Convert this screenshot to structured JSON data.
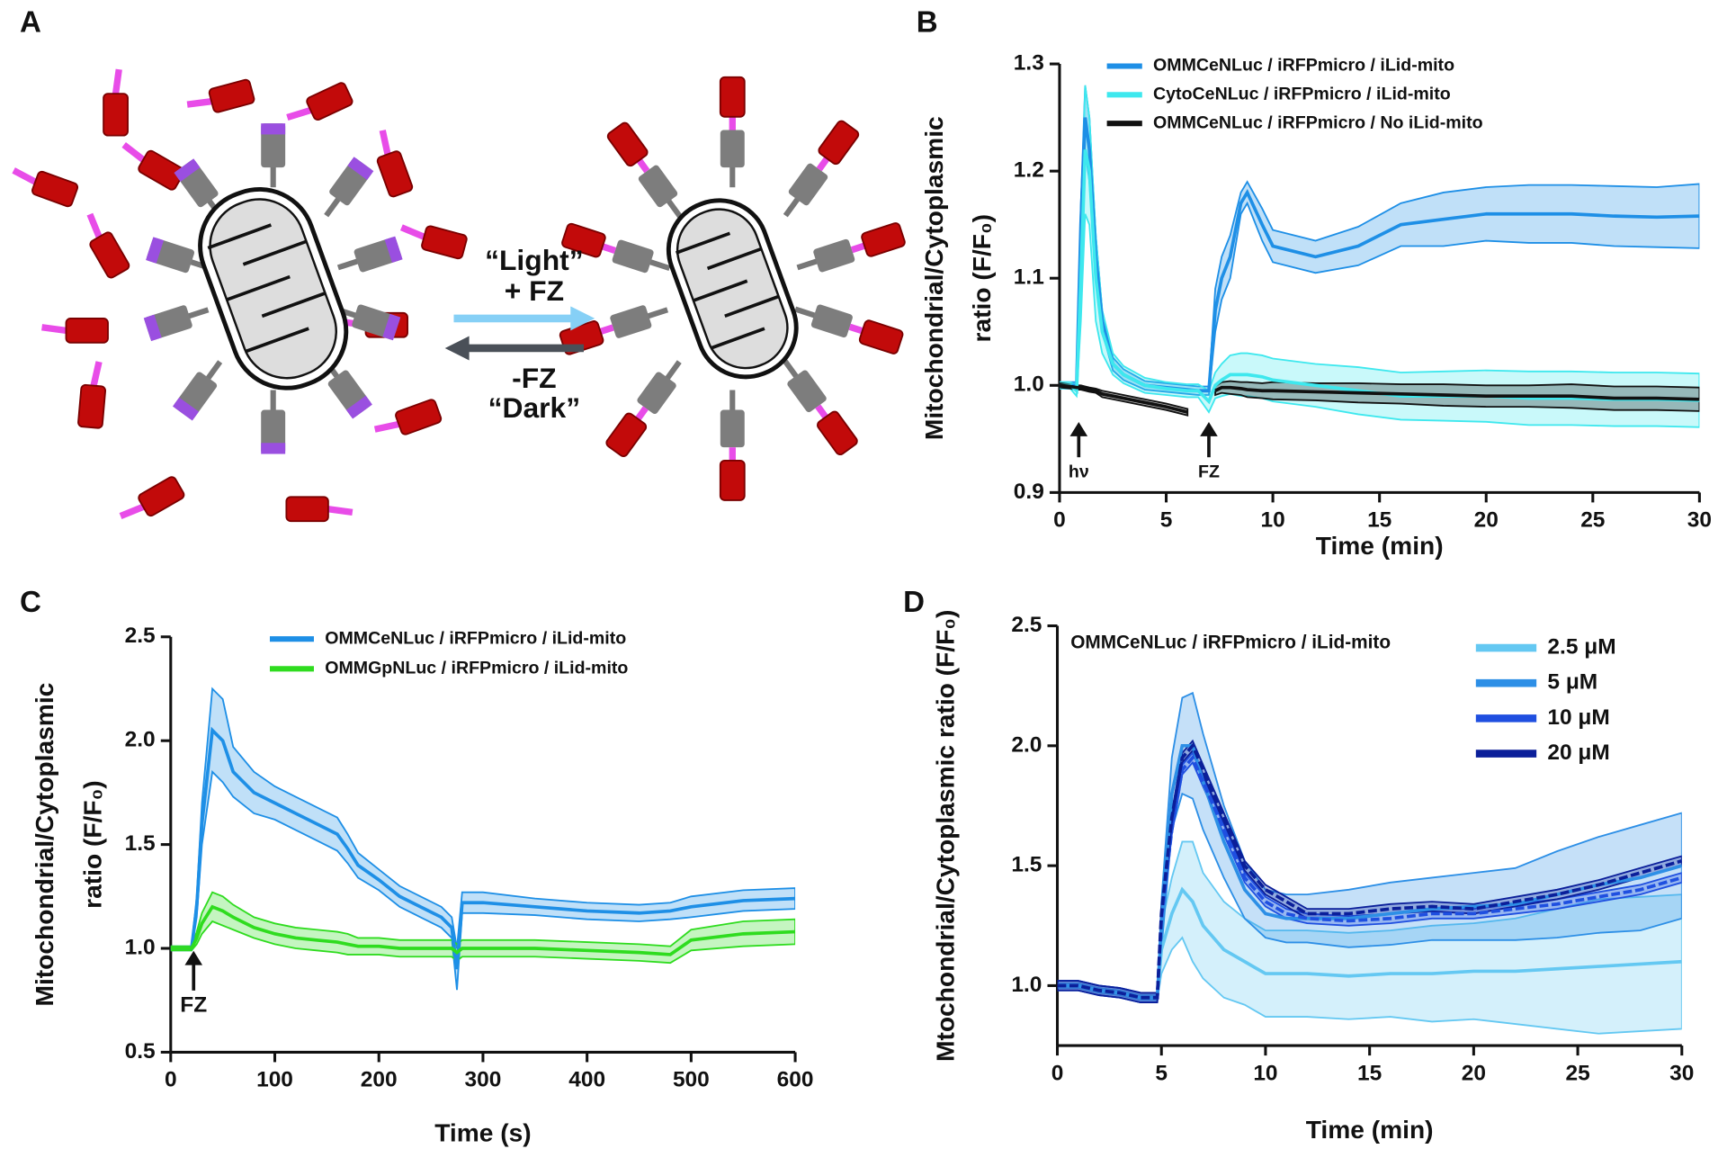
{
  "panel_labels": [
    "A",
    "B",
    "C",
    "D"
  ],
  "diagram": {
    "labels": [
      "“Light”",
      "+ FZ",
      "-FZ",
      "“Dark”"
    ]
  },
  "chart_data": [
    {
      "type": "line",
      "xlabel": "Time (min)",
      "ylabel": [
        "Mitochondrial/Cytoplasmic",
        "ratio (F/F₀)"
      ],
      "x": [
        0,
        0.5,
        0.8,
        1,
        1.2,
        1.4,
        1.7,
        2,
        2.5,
        3,
        4,
        5,
        6,
        6.5,
        7,
        7.3,
        7.6,
        8,
        8.5,
        8.8,
        9.5,
        10,
        12,
        14,
        16,
        18,
        20,
        22,
        24,
        26,
        28,
        30
      ],
      "series": [
        {
          "name": "OMMCeNLuc / iRFPmicro / iLid-mito",
          "color": "#1e8fe6",
          "values": [
            1.0,
            1.0,
            1.0,
            1.15,
            1.25,
            1.22,
            1.12,
            1.06,
            1.02,
            1.01,
            1.0,
            0.998,
            0.996,
            0.995,
            0.995,
            1.07,
            1.1,
            1.12,
            1.17,
            1.18,
            1.15,
            1.13,
            1.12,
            1.13,
            1.15,
            1.155,
            1.16,
            1.16,
            1.16,
            1.158,
            1.157,
            1.158
          ],
          "error": [
            0.003,
            0.003,
            0.003,
            0.02,
            0.03,
            0.03,
            0.02,
            0.01,
            0.006,
            0.005,
            0.004,
            0.004,
            0.004,
            0.004,
            0.004,
            0.02,
            0.02,
            0.02,
            0.01,
            0.01,
            0.015,
            0.015,
            0.015,
            0.018,
            0.02,
            0.025,
            0.025,
            0.027,
            0.027,
            0.028,
            0.028,
            0.03
          ]
        },
        {
          "name": "CytoCeNLuc / iRFPmicro / iLid-mito",
          "color": "#3ee8ee",
          "values": [
            1.0,
            1.0,
            0.995,
            1.1,
            1.22,
            1.2,
            1.1,
            1.05,
            1.02,
            1.01,
            1.0,
            0.997,
            0.995,
            0.995,
            0.985,
            1.0,
            1.005,
            1.01,
            1.01,
            1.01,
            1.008,
            1.005,
            1.0,
            0.995,
            0.99,
            0.99,
            0.99,
            0.988,
            0.988,
            0.987,
            0.987,
            0.986
          ],
          "error": [
            0.003,
            0.003,
            0.005,
            0.04,
            0.06,
            0.05,
            0.04,
            0.02,
            0.01,
            0.008,
            0.007,
            0.006,
            0.006,
            0.006,
            0.01,
            0.012,
            0.015,
            0.018,
            0.02,
            0.02,
            0.02,
            0.02,
            0.02,
            0.022,
            0.022,
            0.023,
            0.024,
            0.025,
            0.025,
            0.025,
            0.025,
            0.025
          ]
        },
        {
          "name": "OMMCeNLuc / iRFPmicro / No iLid-mito",
          "color": "#111111",
          "values": [
            1.0,
            0.999,
            0.998,
            0.998,
            0.997,
            0.996,
            0.995,
            0.992,
            0.99,
            0.988,
            0.984,
            0.98,
            0.975,
            null,
            null,
            0.995,
            0.998,
            0.998,
            0.997,
            0.996,
            0.995,
            0.995,
            0.994,
            0.993,
            0.992,
            0.991,
            0.99,
            0.99,
            0.99,
            0.988,
            0.988,
            0.987
          ],
          "error": [
            0.002,
            0.002,
            0.002,
            0.002,
            0.002,
            0.002,
            0.002,
            0.003,
            0.003,
            0.003,
            0.003,
            0.003,
            0.003,
            null,
            null,
            0.004,
            0.005,
            0.006,
            0.006,
            0.007,
            0.007,
            0.008,
            0.008,
            0.009,
            0.009,
            0.01,
            0.01,
            0.01,
            0.011,
            0.011,
            0.011,
            0.011
          ]
        }
      ],
      "xlim": [
        0,
        30
      ],
      "xticks": [
        0,
        5,
        10,
        15,
        20,
        25,
        30
      ],
      "ylim": [
        0.9,
        1.3
      ],
      "yticks": [
        0.9,
        {
          "value": 1,
          "label": "1.0"
        },
        1.1,
        1.2,
        1.3
      ],
      "legend": "upper left",
      "annotations": [
        {
          "text": "hν",
          "x": 0.9
        },
        {
          "text": "FZ",
          "x": 7
        }
      ]
    },
    {
      "type": "line",
      "xlabel": "Time (s)",
      "ylabel": [
        "Mitochondrial/Cytoplasmic",
        "ratio (F/F₀)"
      ],
      "x": [
        0,
        10,
        20,
        25,
        30,
        40,
        50,
        60,
        80,
        100,
        120,
        140,
        160,
        170,
        180,
        200,
        220,
        240,
        260,
        270,
        275,
        280,
        300,
        350,
        400,
        450,
        480,
        500,
        550,
        600
      ],
      "series": [
        {
          "name": "OMMCeNLuc / iRFPmicro / iLid-mito",
          "color": "#1e8fe6",
          "values": [
            1.0,
            1.0,
            1.0,
            1.2,
            1.6,
            2.05,
            2.0,
            1.85,
            1.75,
            1.7,
            1.65,
            1.6,
            1.55,
            1.48,
            1.4,
            1.33,
            1.25,
            1.2,
            1.15,
            1.1,
            0.9,
            1.22,
            1.22,
            1.2,
            1.18,
            1.17,
            1.18,
            1.2,
            1.23,
            1.24
          ],
          "error": [
            0.01,
            0.01,
            0.01,
            0.05,
            0.1,
            0.2,
            0.2,
            0.12,
            0.1,
            0.08,
            0.08,
            0.08,
            0.08,
            0.07,
            0.06,
            0.05,
            0.05,
            0.05,
            0.05,
            0.05,
            0.1,
            0.05,
            0.05,
            0.04,
            0.04,
            0.04,
            0.04,
            0.05,
            0.05,
            0.05
          ]
        },
        {
          "name": "OMMGpNLuc / iRFPmicro / iLid-mito",
          "color": "#2fdc1f",
          "values": [
            1.0,
            1.0,
            1.0,
            1.05,
            1.12,
            1.2,
            1.18,
            1.15,
            1.1,
            1.07,
            1.05,
            1.04,
            1.03,
            1.02,
            1.01,
            1.01,
            1.0,
            1.0,
            1.0,
            1.0,
            0.98,
            1.0,
            1.0,
            1.0,
            0.99,
            0.98,
            0.97,
            1.04,
            1.07,
            1.08
          ],
          "error": [
            0.01,
            0.01,
            0.01,
            0.03,
            0.05,
            0.07,
            0.07,
            0.06,
            0.05,
            0.05,
            0.05,
            0.05,
            0.05,
            0.05,
            0.04,
            0.04,
            0.04,
            0.04,
            0.04,
            0.04,
            0.04,
            0.04,
            0.04,
            0.04,
            0.04,
            0.04,
            0.04,
            0.05,
            0.06,
            0.06
          ]
        }
      ],
      "xlim": [
        0,
        600
      ],
      "xticks": [
        0,
        100,
        200,
        300,
        400,
        500,
        600
      ],
      "ylim": [
        0.5,
        2.5
      ],
      "yticks": [
        0.5,
        {
          "value": 1,
          "label": "1.0"
        },
        1.5,
        {
          "value": 2,
          "label": "2.0"
        },
        2.5
      ],
      "legend": "upper left",
      "annotations": [
        {
          "text": "FZ",
          "x": 22
        }
      ]
    },
    {
      "type": "line",
      "subtitle": "OMMCeNLuc / iRFPmicro / iLid-mito",
      "xlabel": "Time (min)",
      "ylabel": [
        "Mtochondrial/Cytoplasmic ratio (F/F₀)"
      ],
      "x": [
        0,
        1,
        2,
        3,
        4,
        4.8,
        5,
        5.5,
        6,
        6.5,
        7,
        8,
        9,
        10,
        11,
        12,
        14,
        16,
        18,
        20,
        22,
        24,
        26,
        28,
        30
      ],
      "series": [
        {
          "name": "2.5 μM",
          "color": "#64c8f2",
          "values": [
            1.0,
            1.0,
            0.98,
            0.97,
            0.95,
            0.95,
            1.15,
            1.3,
            1.4,
            1.35,
            1.25,
            1.15,
            1.1,
            1.05,
            1.05,
            1.05,
            1.04,
            1.05,
            1.05,
            1.06,
            1.06,
            1.07,
            1.08,
            1.09,
            1.1
          ],
          "error": [
            0.01,
            0.01,
            0.01,
            0.01,
            0.01,
            0.01,
            0.1,
            0.15,
            0.2,
            0.25,
            0.22,
            0.2,
            0.18,
            0.18,
            0.18,
            0.18,
            0.18,
            0.18,
            0.2,
            0.2,
            0.22,
            0.25,
            0.28,
            0.28,
            0.28
          ]
        },
        {
          "name": "5 μM",
          "color": "#2d8fe6",
          "values": [
            1.0,
            1.0,
            0.98,
            0.97,
            0.95,
            0.95,
            1.25,
            1.8,
            2.0,
            2.0,
            1.85,
            1.6,
            1.4,
            1.3,
            1.28,
            1.28,
            1.28,
            1.3,
            1.32,
            1.33,
            1.34,
            1.38,
            1.42,
            1.45,
            1.5
          ],
          "error": [
            0.02,
            0.02,
            0.02,
            0.02,
            0.02,
            0.02,
            0.1,
            0.15,
            0.2,
            0.22,
            0.2,
            0.15,
            0.12,
            0.1,
            0.1,
            0.1,
            0.12,
            0.13,
            0.13,
            0.14,
            0.15,
            0.18,
            0.2,
            0.22,
            0.22
          ]
        },
        {
          "name": "10 μM",
          "color": "#1f4fe0",
          "values": [
            1.0,
            1.0,
            0.98,
            0.97,
            0.95,
            0.95,
            1.28,
            1.65,
            1.9,
            1.95,
            1.85,
            1.65,
            1.45,
            1.35,
            1.3,
            1.28,
            1.27,
            1.28,
            1.3,
            1.3,
            1.32,
            1.34,
            1.37,
            1.4,
            1.45
          ],
          "error": [
            0.02,
            0.02,
            0.02,
            0.02,
            0.02,
            0.02,
            0.02,
            0.02,
            0.02,
            0.02,
            0.02,
            0.02,
            0.02,
            0.02,
            0.02,
            0.02,
            0.02,
            0.02,
            0.02,
            0.02,
            0.02,
            0.02,
            0.02,
            0.02,
            0.02
          ]
        },
        {
          "name": "20 μM",
          "color": "#0b1f9a",
          "values": [
            1.0,
            1.0,
            0.98,
            0.97,
            0.95,
            0.95,
            1.3,
            1.7,
            1.95,
            2.0,
            1.9,
            1.7,
            1.5,
            1.4,
            1.35,
            1.3,
            1.3,
            1.32,
            1.33,
            1.32,
            1.35,
            1.38,
            1.42,
            1.47,
            1.52
          ],
          "error": [
            0.02,
            0.02,
            0.02,
            0.02,
            0.02,
            0.02,
            0.02,
            0.02,
            0.02,
            0.02,
            0.02,
            0.02,
            0.02,
            0.02,
            0.02,
            0.02,
            0.02,
            0.02,
            0.02,
            0.02,
            0.02,
            0.02,
            0.02,
            0.02,
            0.02
          ]
        }
      ],
      "xlim": [
        0,
        30
      ],
      "xticks": [
        0,
        5,
        10,
        15,
        20,
        25,
        30
      ],
      "ylim": [
        0.75,
        2.5
      ],
      "yticks": [
        {
          "value": 1,
          "label": "1.0"
        },
        1.5,
        {
          "value": 2,
          "label": "2.0"
        },
        2.5
      ],
      "legend": "upper right"
    }
  ]
}
